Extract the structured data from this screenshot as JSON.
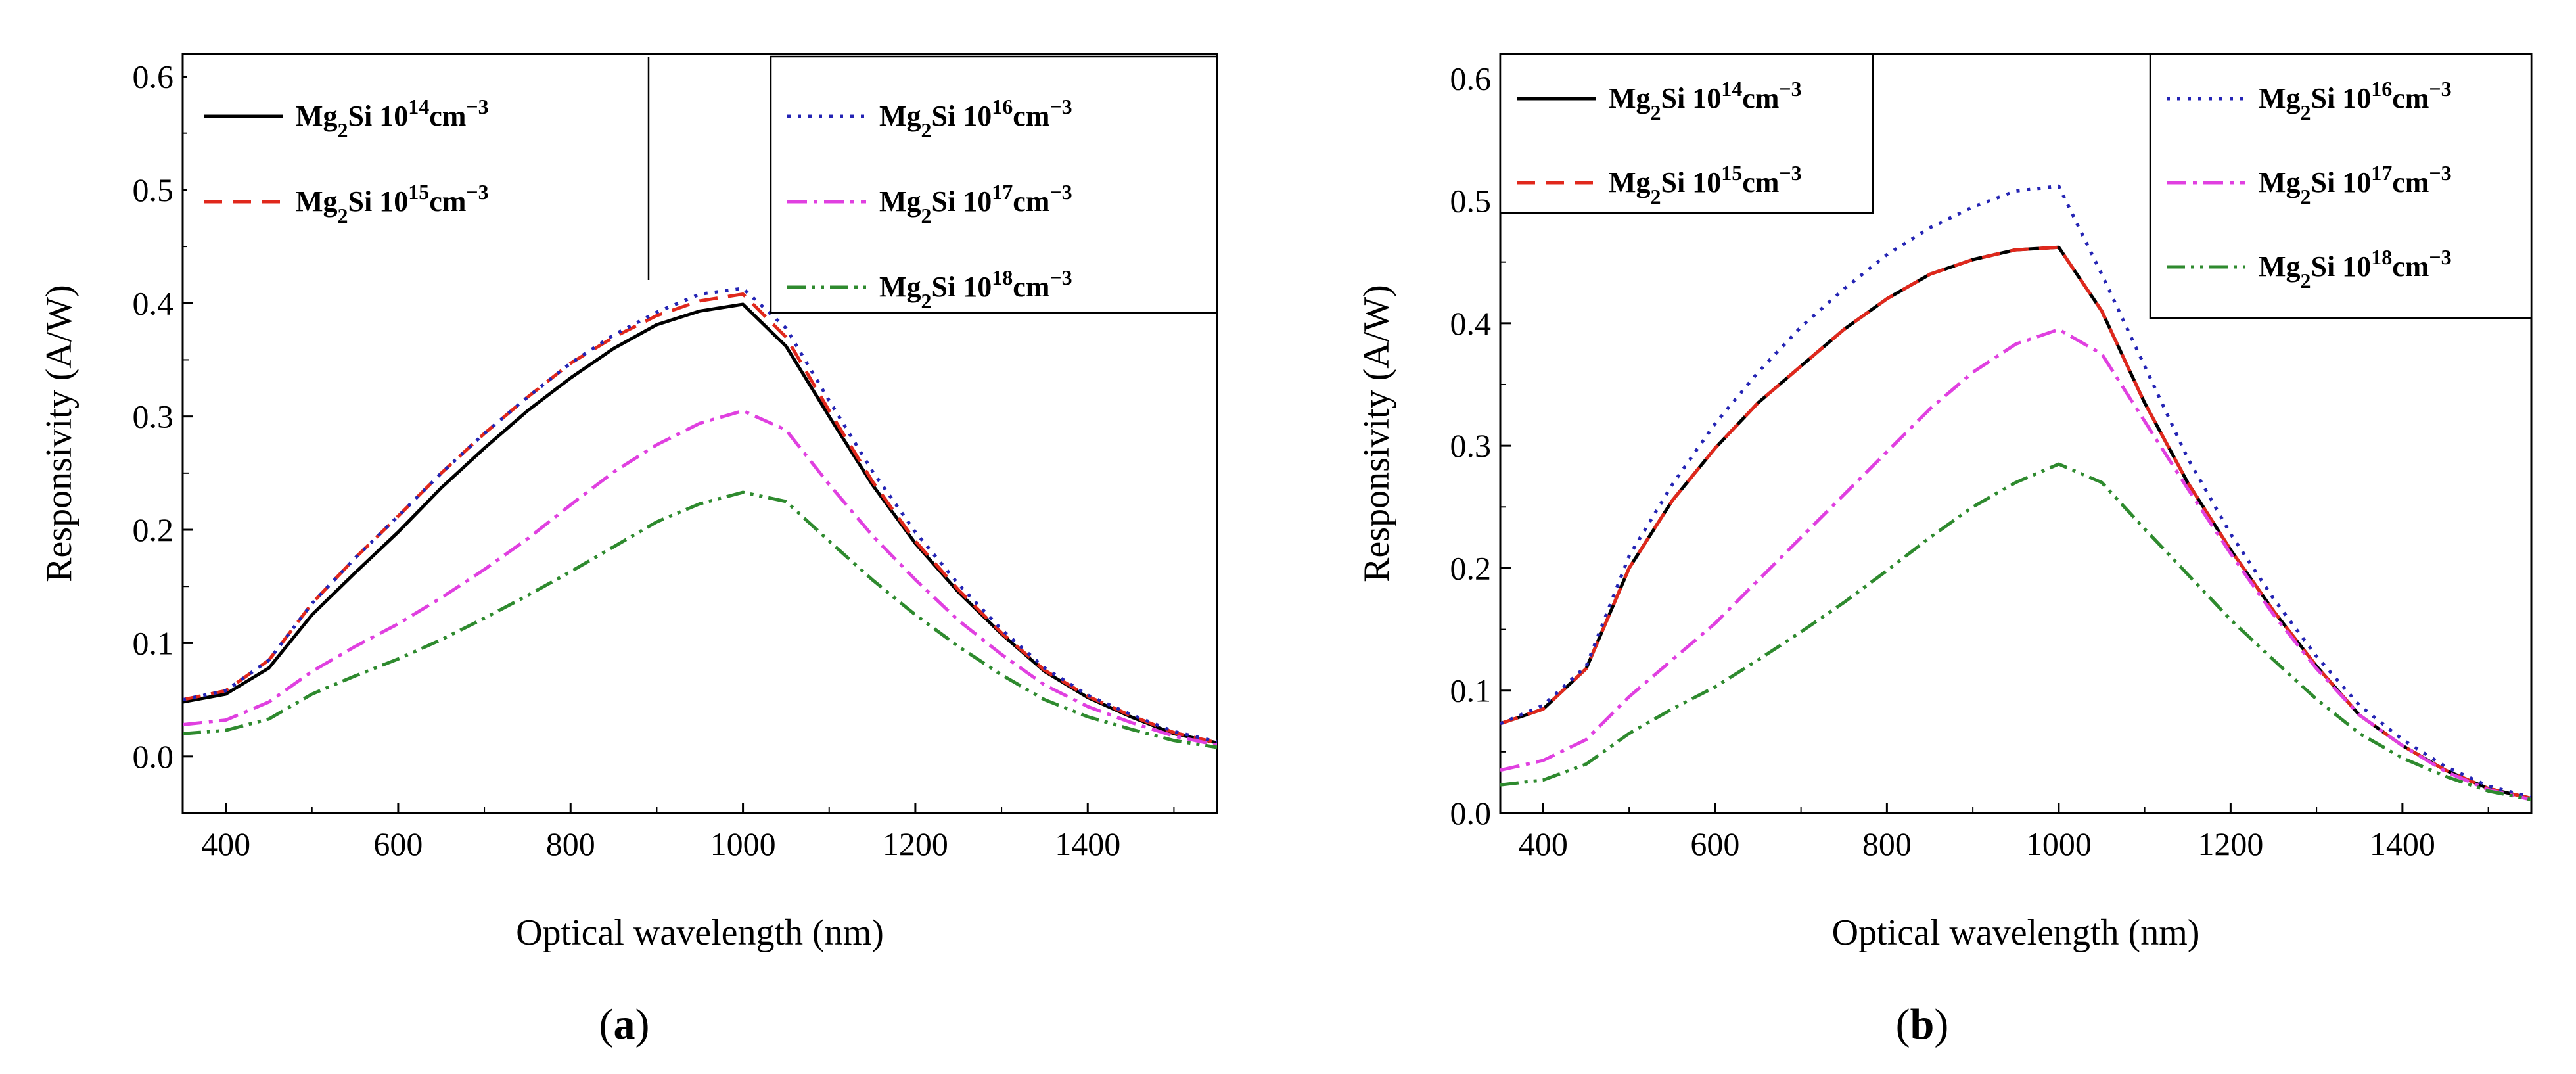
{
  "chart_data": [
    {
      "type": "line",
      "caption": "(a)",
      "caption_letter": "a",
      "xlabel": "Optical wavelength (nm)",
      "ylabel": "Responsivity (A/W)",
      "xlim": [
        350,
        1550
      ],
      "ylim": [
        -0.05,
        0.62
      ],
      "xticks": [
        400,
        600,
        800,
        1000,
        1200,
        1400
      ],
      "yticks": [
        0.0,
        0.1,
        0.2,
        0.3,
        0.4,
        0.5,
        0.6
      ],
      "ytick_labels": [
        "0.0",
        "0.1",
        "0.2",
        "0.3",
        "0.4",
        "0.5",
        "0.6"
      ],
      "legend_groups": [
        [
          0,
          1
        ],
        [
          2,
          3,
          4
        ]
      ],
      "series": [
        {
          "name": "Mg2Si 10^14 cm^-3",
          "legend": {
            "pre": "Mg",
            "sub": "2",
            "mid": "Si 10",
            "sup1": "14",
            "unit": "cm",
            "sup2": "−3"
          },
          "color": "#000000",
          "dash": "none",
          "x": [
            350,
            400,
            450,
            500,
            550,
            600,
            650,
            700,
            750,
            800,
            850,
            900,
            950,
            1000,
            1050,
            1100,
            1150,
            1200,
            1250,
            1300,
            1350,
            1400,
            1450,
            1500,
            1550
          ],
          "y": [
            0.048,
            0.055,
            0.078,
            0.125,
            0.162,
            0.198,
            0.237,
            0.272,
            0.305,
            0.334,
            0.36,
            0.381,
            0.393,
            0.399,
            0.362,
            0.3,
            0.24,
            0.188,
            0.145,
            0.108,
            0.075,
            0.052,
            0.035,
            0.02,
            0.012
          ]
        },
        {
          "name": "Mg2Si 10^15 cm^-3",
          "legend": {
            "pre": "Mg",
            "sub": "2",
            "mid": "Si 10",
            "sup1": "15",
            "unit": "cm",
            "sup2": "−3"
          },
          "color": "#e0281c",
          "dash": "28,16",
          "x": [
            350,
            400,
            450,
            500,
            550,
            600,
            650,
            700,
            750,
            800,
            850,
            900,
            950,
            1000,
            1050,
            1100,
            1150,
            1200,
            1250,
            1300,
            1350,
            1400,
            1450,
            1500,
            1550
          ],
          "y": [
            0.05,
            0.058,
            0.085,
            0.135,
            0.175,
            0.212,
            0.25,
            0.285,
            0.317,
            0.347,
            0.37,
            0.389,
            0.402,
            0.408,
            0.37,
            0.305,
            0.243,
            0.19,
            0.147,
            0.109,
            0.076,
            0.053,
            0.036,
            0.021,
            0.012
          ]
        },
        {
          "name": "Mg2Si 10^16 cm^-3",
          "legend": {
            "pre": "Mg",
            "sub": "2",
            "mid": "Si 10",
            "sup1": "16",
            "unit": "cm",
            "sup2": "−3"
          },
          "color": "#2424b4",
          "dash": "5,11",
          "x": [
            350,
            400,
            450,
            500,
            550,
            600,
            650,
            700,
            750,
            800,
            850,
            900,
            950,
            1000,
            1050,
            1100,
            1150,
            1200,
            1250,
            1300,
            1350,
            1400,
            1450,
            1500,
            1550
          ],
          "y": [
            0.05,
            0.058,
            0.085,
            0.135,
            0.175,
            0.212,
            0.25,
            0.285,
            0.317,
            0.347,
            0.372,
            0.392,
            0.408,
            0.413,
            0.378,
            0.314,
            0.252,
            0.198,
            0.152,
            0.112,
            0.078,
            0.054,
            0.037,
            0.022,
            0.013
          ]
        },
        {
          "name": "Mg2Si 10^17 cm^-3",
          "legend": {
            "pre": "Mg",
            "sub": "2",
            "mid": "Si 10",
            "sup1": "17",
            "unit": "cm",
            "sup2": "−3"
          },
          "color": "#e040e0",
          "dash": "30,10,6,10",
          "x": [
            350,
            400,
            450,
            500,
            550,
            600,
            650,
            700,
            750,
            800,
            850,
            900,
            950,
            1000,
            1050,
            1100,
            1150,
            1200,
            1250,
            1300,
            1350,
            1400,
            1450,
            1500,
            1550
          ],
          "y": [
            0.028,
            0.032,
            0.048,
            0.075,
            0.097,
            0.117,
            0.14,
            0.165,
            0.192,
            0.222,
            0.251,
            0.275,
            0.294,
            0.305,
            0.288,
            0.24,
            0.195,
            0.156,
            0.12,
            0.09,
            0.063,
            0.044,
            0.03,
            0.018,
            0.01
          ]
        },
        {
          "name": "Mg2Si 10^18 cm^-3",
          "legend": {
            "pre": "Mg",
            "sub": "2",
            "mid": "Si 10",
            "sup1": "18",
            "unit": "cm",
            "sup2": "−3"
          },
          "color": "#2e8a2e",
          "dash": "28,9,5,9,5,9",
          "x": [
            350,
            400,
            450,
            500,
            550,
            600,
            650,
            700,
            750,
            800,
            850,
            900,
            950,
            1000,
            1050,
            1100,
            1150,
            1200,
            1250,
            1300,
            1350,
            1400,
            1450,
            1500,
            1550
          ],
          "y": [
            0.02,
            0.023,
            0.033,
            0.055,
            0.071,
            0.086,
            0.103,
            0.122,
            0.142,
            0.163,
            0.185,
            0.207,
            0.223,
            0.233,
            0.225,
            0.19,
            0.156,
            0.125,
            0.097,
            0.072,
            0.05,
            0.035,
            0.024,
            0.014,
            0.008
          ]
        }
      ]
    },
    {
      "type": "line",
      "caption": "(b)",
      "caption_letter": "b",
      "xlabel": "Optical wavelength (nm)",
      "ylabel": "Responsivity (A/W)",
      "xlim": [
        350,
        1550
      ],
      "ylim": [
        0.0,
        0.62
      ],
      "xticks": [
        400,
        600,
        800,
        1000,
        1200,
        1400
      ],
      "yticks": [
        0.0,
        0.1,
        0.2,
        0.3,
        0.4,
        0.5,
        0.6
      ],
      "ytick_labels": [
        "0.0",
        "0.1",
        "0.2",
        "0.3",
        "0.4",
        "0.5",
        "0.6"
      ],
      "legend_groups": [
        [
          0,
          1
        ],
        [
          2,
          3,
          4
        ]
      ],
      "series": [
        {
          "name": "Mg2Si 10^14 cm^-3",
          "legend": {
            "pre": "Mg",
            "sub": "2",
            "mid": "Si 10",
            "sup1": "14",
            "unit": "cm",
            "sup2": "−3"
          },
          "color": "#000000",
          "dash": "none",
          "x": [
            350,
            400,
            450,
            500,
            550,
            600,
            650,
            700,
            750,
            800,
            850,
            900,
            950,
            1000,
            1050,
            1100,
            1150,
            1200,
            1250,
            1300,
            1350,
            1400,
            1450,
            1500,
            1550
          ],
          "y": [
            0.073,
            0.085,
            0.118,
            0.2,
            0.255,
            0.298,
            0.335,
            0.365,
            0.395,
            0.42,
            0.44,
            0.452,
            0.46,
            0.462,
            0.41,
            0.335,
            0.27,
            0.215,
            0.165,
            0.12,
            0.08,
            0.055,
            0.035,
            0.02,
            0.012
          ]
        },
        {
          "name": "Mg2Si 10^15 cm^-3",
          "legend": {
            "pre": "Mg",
            "sub": "2",
            "mid": "Si 10",
            "sup1": "15",
            "unit": "cm",
            "sup2": "−3"
          },
          "color": "#e0281c",
          "dash": "28,16",
          "x": [
            350,
            400,
            450,
            500,
            550,
            600,
            650,
            700,
            750,
            800,
            850,
            900,
            950,
            1000,
            1050,
            1100,
            1150,
            1200,
            1250,
            1300,
            1350,
            1400,
            1450,
            1500,
            1550
          ],
          "y": [
            0.073,
            0.085,
            0.118,
            0.2,
            0.255,
            0.298,
            0.335,
            0.365,
            0.395,
            0.42,
            0.44,
            0.452,
            0.46,
            0.462,
            0.41,
            0.335,
            0.27,
            0.215,
            0.165,
            0.12,
            0.08,
            0.055,
            0.035,
            0.02,
            0.012
          ]
        },
        {
          "name": "Mg2Si 10^16 cm^-3",
          "legend": {
            "pre": "Mg",
            "sub": "2",
            "mid": "Si 10",
            "sup1": "16",
            "unit": "cm",
            "sup2": "−3"
          },
          "color": "#2424b4",
          "dash": "5,11",
          "x": [
            350,
            400,
            450,
            500,
            550,
            600,
            650,
            700,
            750,
            800,
            850,
            900,
            950,
            1000,
            1050,
            1100,
            1150,
            1200,
            1250,
            1300,
            1350,
            1400,
            1450,
            1500,
            1550
          ],
          "y": [
            0.073,
            0.088,
            0.12,
            0.21,
            0.268,
            0.318,
            0.36,
            0.397,
            0.428,
            0.456,
            0.478,
            0.495,
            0.508,
            0.512,
            0.44,
            0.365,
            0.29,
            0.228,
            0.175,
            0.128,
            0.088,
            0.06,
            0.038,
            0.022,
            0.013
          ]
        },
        {
          "name": "Mg2Si 10^17 cm^-3",
          "legend": {
            "pre": "Mg",
            "sub": "2",
            "mid": "Si 10",
            "sup1": "17",
            "unit": "cm",
            "sup2": "−3"
          },
          "color": "#e040e0",
          "dash": "30,10,6,10",
          "x": [
            350,
            400,
            450,
            500,
            550,
            600,
            650,
            700,
            750,
            800,
            850,
            900,
            950,
            1000,
            1050,
            1100,
            1150,
            1200,
            1250,
            1300,
            1350,
            1400,
            1450,
            1500,
            1550
          ],
          "y": [
            0.035,
            0.043,
            0.06,
            0.095,
            0.125,
            0.155,
            0.19,
            0.225,
            0.26,
            0.295,
            0.33,
            0.36,
            0.383,
            0.395,
            0.375,
            0.32,
            0.265,
            0.212,
            0.162,
            0.118,
            0.08,
            0.055,
            0.034,
            0.019,
            0.011
          ]
        },
        {
          "name": "Mg2Si 10^18 cm^-3",
          "legend": {
            "pre": "Mg",
            "sub": "2",
            "mid": "Si 10",
            "sup1": "18",
            "unit": "cm",
            "sup2": "−3"
          },
          "color": "#2e8a2e",
          "dash": "28,9,5,9,5,9",
          "x": [
            350,
            400,
            450,
            500,
            550,
            600,
            650,
            700,
            750,
            800,
            850,
            900,
            950,
            1000,
            1050,
            1100,
            1150,
            1200,
            1250,
            1300,
            1350,
            1400,
            1450,
            1500,
            1550
          ],
          "y": [
            0.023,
            0.027,
            0.04,
            0.065,
            0.085,
            0.103,
            0.125,
            0.148,
            0.172,
            0.198,
            0.225,
            0.25,
            0.27,
            0.285,
            0.27,
            0.232,
            0.195,
            0.158,
            0.125,
            0.093,
            0.065,
            0.045,
            0.03,
            0.018,
            0.011
          ]
        }
      ]
    }
  ]
}
